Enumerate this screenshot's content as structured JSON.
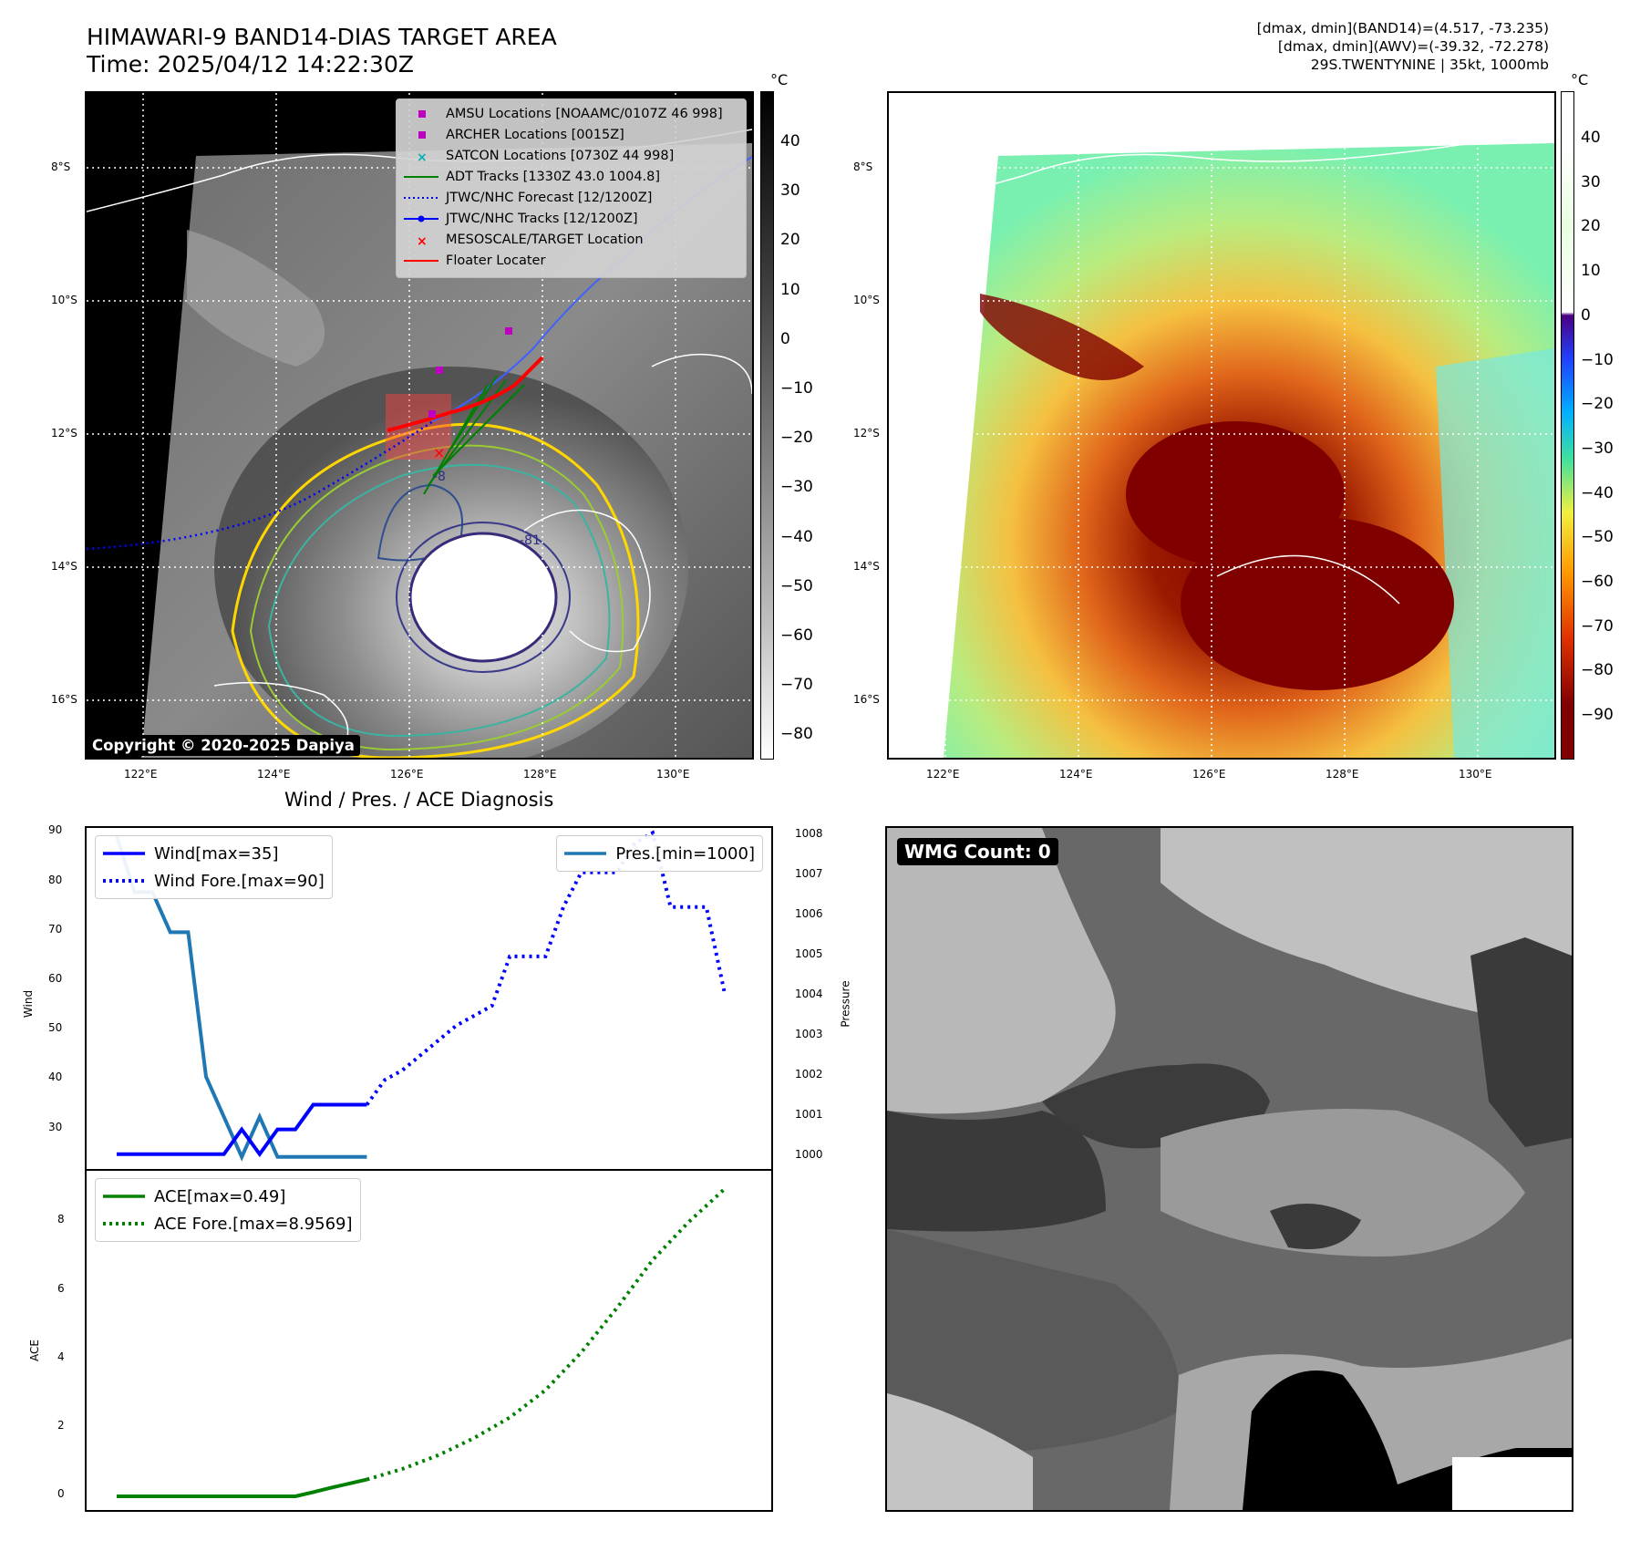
{
  "header": {
    "title_line1": "HIMAWARI-9 BAND14-DIAS TARGET AREA",
    "title_line2": "Time: 2025/04/12 14:22:30Z",
    "info_line1": "[dmax, dmin](BAND14)=(4.517, -73.235)",
    "info_line2": "[dmax, dmin](AWV)=(-39.32, -72.278)",
    "info_line3": "29S.TWENTYNINE | 35kt, 1000mb"
  },
  "map": {
    "lat_labels": [
      "8°S",
      "10°S",
      "12°S",
      "14°S",
      "16°S"
    ],
    "lon_labels": [
      "122°E",
      "124°E",
      "126°E",
      "128°E",
      "130°E"
    ],
    "copyright": "Copyright © 2020-2025 Dapiya",
    "legend": [
      {
        "label": "AMSU Locations [NOAAMC/0107Z 46 998]",
        "icon": "square-marker",
        "color": "#c000c0"
      },
      {
        "label": "ARCHER Locations [0015Z]",
        "icon": "square-marker",
        "color": "#c000c0"
      },
      {
        "label": "SATCON Locations [0730Z 44 998]",
        "icon": "x-marker",
        "color": "#00b0b0"
      },
      {
        "label": "ADT Tracks [1330Z 43.0 1004.8]",
        "icon": "solid-line",
        "color": "#008000"
      },
      {
        "label": "JTWC/NHC Forecast [12/1200Z]",
        "icon": "dotted-line",
        "color": "#0000ff"
      },
      {
        "label": "JTWC/NHC Tracks [12/1200Z]",
        "icon": "line-with-dots",
        "color": "#0000ff"
      },
      {
        "label": "MESOSCALE/TARGET Location",
        "icon": "x-marker",
        "color": "#ff0000"
      },
      {
        "label": "Floater Locater",
        "icon": "solid-line",
        "color": "#ff0000"
      }
    ],
    "contour_labels": [
      "-81",
      "-8"
    ]
  },
  "colorbar1": {
    "unit": "°C",
    "ticks": [
      "40",
      "30",
      "20",
      "10",
      "0",
      "−10",
      "−20",
      "−30",
      "−40",
      "−50",
      "−60",
      "−70",
      "−80"
    ]
  },
  "colorbar2": {
    "unit": "°C",
    "ticks": [
      "40",
      "30",
      "20",
      "10",
      "0",
      "−10",
      "−20",
      "−30",
      "−40",
      "−50",
      "−60",
      "−70",
      "−80",
      "−90"
    ]
  },
  "wmg": {
    "label": "WMG Count: 0"
  },
  "chart_data": [
    {
      "type": "line",
      "title": "Wind / Pres. / ACE Diagnosis",
      "ylabel": "Wind",
      "y2label": "Pressure",
      "ylim": [
        22,
        91
      ],
      "y2lim": [
        999.7,
        1008.2
      ],
      "yticks": [
        "90",
        "80",
        "70",
        "60",
        "50",
        "40",
        "30"
      ],
      "y2ticks": [
        "1008",
        "1007",
        "1006",
        "1005",
        "1004",
        "1003",
        "1002",
        "1001",
        "1000"
      ],
      "series": [
        {
          "name": "Wind[max=35]",
          "axis": "left",
          "style": "solid",
          "color": "#0000ff",
          "x": [
            0,
            1,
            2,
            3,
            4,
            5,
            6,
            7,
            8,
            9,
            10,
            11,
            12,
            13,
            14
          ],
          "values": [
            25,
            25,
            25,
            25,
            25,
            25,
            25,
            30,
            25,
            30,
            30,
            35,
            35,
            35,
            35
          ]
        },
        {
          "name": "Wind Fore.[max=90]",
          "axis": "left",
          "style": "dotted",
          "color": "#0000ff",
          "x": [
            14,
            15,
            16,
            17,
            18,
            19,
            20,
            21,
            22,
            23,
            24,
            25,
            26,
            27,
            28,
            29,
            30,
            31,
            32,
            33,
            34
          ],
          "values": [
            35,
            40,
            42,
            45,
            48,
            51,
            53,
            55,
            65,
            65,
            65,
            75,
            82,
            82,
            82,
            88,
            90,
            75,
            75,
            75,
            58
          ]
        },
        {
          "name": "Pres.[min=1000]",
          "axis": "right",
          "style": "solid",
          "color": "#1f77b4",
          "x": [
            0,
            1,
            2,
            3,
            4,
            5,
            6,
            7,
            8,
            9,
            10,
            11,
            12,
            13,
            14
          ],
          "values": [
            1008,
            1006.6,
            1006.6,
            1005.6,
            1005.6,
            1002,
            1001,
            1000,
            1001,
            1000,
            1000,
            1000,
            1000,
            1000,
            1000
          ]
        }
      ]
    },
    {
      "type": "line",
      "ylabel": "ACE",
      "ylim": [
        -0.4,
        9.5
      ],
      "yticks": [
        "0",
        "2",
        "4",
        "6",
        "8"
      ],
      "series": [
        {
          "name": "ACE[max=0.49]",
          "style": "solid",
          "color": "#008000",
          "x": [
            0,
            1,
            2,
            3,
            4,
            5,
            6,
            7,
            8,
            9,
            10,
            11,
            12,
            13,
            14
          ],
          "values": [
            0,
            0,
            0,
            0,
            0,
            0,
            0,
            0,
            0,
            0,
            0,
            0.12,
            0.25,
            0.37,
            0.49
          ]
        },
        {
          "name": "ACE Fore.[max=8.9569]",
          "style": "dotted",
          "color": "#008000",
          "x": [
            14,
            16,
            18,
            20,
            22,
            24,
            26,
            28,
            30,
            32,
            34
          ],
          "values": [
            0.49,
            0.8,
            1.2,
            1.7,
            2.3,
            3.1,
            4.2,
            5.5,
            6.9,
            8.0,
            8.96
          ]
        }
      ]
    }
  ]
}
